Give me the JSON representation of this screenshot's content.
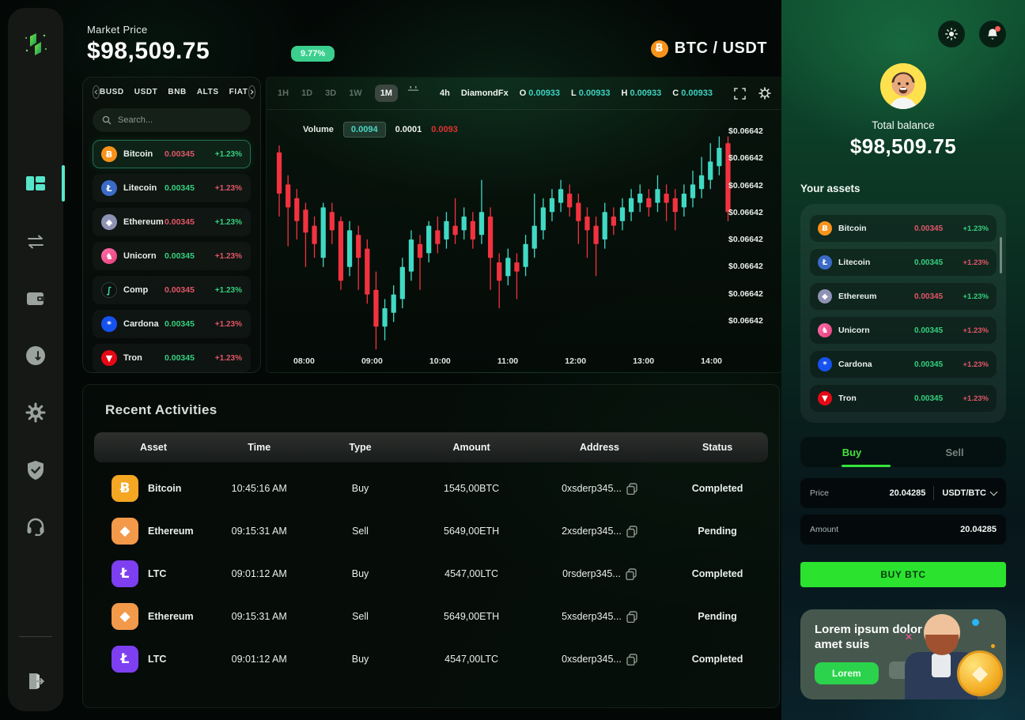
{
  "palette": {
    "green": "#35d07f",
    "red": "#e25668",
    "teal": "#40d9c4",
    "candle_red": "#f2323f",
    "lime": "#2be22e",
    "badge_green": "#3bcf8e",
    "status_green": "#17c796",
    "status_red": "#e03e3e"
  },
  "header": {
    "market_price_label": "Market Price",
    "market_price": "$98,509.75",
    "change_badge": "9.77%",
    "pair": "BTC / USDT",
    "pair_icon": "bitcoin-icon"
  },
  "coin_panel": {
    "filters": [
      "BUSD",
      "USDT",
      "BNB",
      "ALTS",
      "FIAT"
    ],
    "search_placeholder": "Search...",
    "coins": [
      {
        "name": "Bitcoin",
        "price": "0.00345",
        "change": "+1.23%",
        "price_color": "red",
        "change_color": "green",
        "glyph": "Ƀ",
        "bg": "#f7931a",
        "selected": true
      },
      {
        "name": "Litecoin",
        "price": "0.00345",
        "change": "+1.23%",
        "price_color": "green",
        "change_color": "red",
        "glyph": "Ł",
        "bg": "#3b6bc7",
        "selected": false
      },
      {
        "name": "Ethereum",
        "price": "0.00345",
        "change": "+1.23%",
        "price_color": "red",
        "change_color": "green",
        "glyph": "◆",
        "bg": "#8e93b4",
        "selected": false
      },
      {
        "name": "Unicorn",
        "price": "0.00345",
        "change": "+1.23%",
        "price_color": "green",
        "change_color": "red",
        "glyph": "♞",
        "bg": "linear-gradient(135deg,#ff70ae,#e83d77)",
        "selected": false
      },
      {
        "name": "Comp",
        "price": "0.00345",
        "change": "+1.23%",
        "price_color": "red",
        "change_color": "green",
        "glyph": "∫",
        "bg": "#0c1210",
        "fg": "#3be8b0",
        "selected": false
      },
      {
        "name": "Cardona",
        "price": "0.00345",
        "change": "+1.23%",
        "price_color": "green",
        "change_color": "red",
        "glyph": "*",
        "bg": "#1652f0",
        "selected": false
      },
      {
        "name": "Tron",
        "price": "0.00345",
        "change": "+1.23%",
        "price_color": "green",
        "change_color": "red",
        "glyph": "▼",
        "bg": "#e50915",
        "selected": false
      }
    ]
  },
  "chart": {
    "timeframes": [
      "1H",
      "1D",
      "3D",
      "1W",
      "1M"
    ],
    "active_timeframe": "1M",
    "interval": "4h",
    "source": "DiamondFx",
    "ohlc": [
      {
        "key": "O",
        "value": "0.00933"
      },
      {
        "key": "L",
        "value": "0.00933"
      },
      {
        "key": "H",
        "value": "0.00933"
      },
      {
        "key": "C",
        "value": "0.00933"
      }
    ],
    "legend": {
      "volume_label": "Volume",
      "v1": "0.0094",
      "v2": "0.0001",
      "v3": "0.0093"
    }
  },
  "chart_data": {
    "type": "candlestick",
    "title": "BTC / USDT 4h candles",
    "x_labels": [
      "08:00",
      "09:00",
      "10:00",
      "11:00",
      "12:00",
      "13:00",
      "14:00"
    ],
    "y_labels": [
      "$0.06642",
      "$0.06642",
      "$0.06642",
      "$0.06642",
      "$0.06642",
      "$0.06642",
      "$0.06642",
      "$0.06642"
    ],
    "note": "y axis repeats the same placeholder price label; candles approximated as [open,close,high,low] on 0-100 scale",
    "candles": [
      [
        88,
        70,
        91,
        60
      ],
      [
        74,
        64,
        78,
        47
      ],
      [
        68,
        58,
        72,
        50
      ],
      [
        63,
        53,
        66,
        38
      ],
      [
        56,
        48,
        60,
        42
      ],
      [
        42,
        64,
        66,
        38
      ],
      [
        62,
        54,
        66,
        48
      ],
      [
        58,
        32,
        60,
        28
      ],
      [
        38,
        54,
        58,
        34
      ],
      [
        52,
        42,
        56,
        28
      ],
      [
        46,
        26,
        50,
        22
      ],
      [
        28,
        12,
        36,
        2
      ],
      [
        12,
        20,
        24,
        6
      ],
      [
        18,
        26,
        30,
        14
      ],
      [
        24,
        38,
        42,
        20
      ],
      [
        36,
        50,
        54,
        32
      ],
      [
        48,
        42,
        52,
        28
      ],
      [
        44,
        56,
        58,
        40
      ],
      [
        54,
        48,
        60,
        44
      ],
      [
        50,
        58,
        62,
        46
      ],
      [
        56,
        52,
        68,
        48
      ],
      [
        54,
        60,
        64,
        50
      ],
      [
        58,
        50,
        62,
        46
      ],
      [
        52,
        62,
        76,
        48
      ],
      [
        60,
        42,
        64,
        28
      ],
      [
        40,
        32,
        44,
        20
      ],
      [
        34,
        42,
        46,
        30
      ],
      [
        40,
        36,
        44,
        24
      ],
      [
        38,
        48,
        52,
        34
      ],
      [
        46,
        56,
        70,
        42
      ],
      [
        54,
        64,
        68,
        50
      ],
      [
        62,
        68,
        72,
        58
      ],
      [
        66,
        72,
        76,
        62
      ],
      [
        70,
        64,
        74,
        60
      ],
      [
        66,
        58,
        70,
        48
      ],
      [
        60,
        54,
        64,
        42
      ],
      [
        56,
        48,
        60,
        34
      ],
      [
        50,
        62,
        66,
        46
      ],
      [
        60,
        56,
        64,
        52
      ],
      [
        58,
        64,
        68,
        54
      ],
      [
        62,
        68,
        72,
        58
      ],
      [
        66,
        70,
        74,
        62
      ],
      [
        68,
        64,
        72,
        60
      ],
      [
        66,
        72,
        78,
        62
      ],
      [
        70,
        66,
        74,
        58
      ],
      [
        68,
        62,
        72,
        54
      ],
      [
        64,
        70,
        74,
        60
      ],
      [
        68,
        74,
        80,
        64
      ],
      [
        72,
        78,
        86,
        68
      ],
      [
        76,
        84,
        92,
        72
      ],
      [
        82,
        90,
        95,
        78
      ],
      [
        92,
        62,
        95,
        58
      ]
    ]
  },
  "activities": {
    "title": "Recent Activities",
    "columns": [
      "Asset",
      "Time",
      "Type",
      "Amount",
      "Address",
      "Status"
    ],
    "rows": [
      {
        "asset": "Bitcoin",
        "glyph": "Ƀ",
        "bg": "#f5a623",
        "time": "10:45:16 AM",
        "type": "Buy",
        "amount": "1545,00BTC",
        "address": "0xsderp345...",
        "status": "Completed",
        "status_color": "green"
      },
      {
        "asset": "Ethereum",
        "glyph": "◆",
        "bg": "#f2994a",
        "time": "09:15:31 AM",
        "type": "Sell",
        "amount": "5649,00ETH",
        "address": "2xsderp345...",
        "status": "Pending",
        "status_color": "red"
      },
      {
        "asset": "LTC",
        "glyph": "Ł",
        "bg": "#7d3ff0",
        "time": "09:01:12 AM",
        "type": "Buy",
        "amount": "4547,00LTC",
        "address": "0rsderp345...",
        "status": "Completed",
        "status_color": "green"
      },
      {
        "asset": "Ethereum",
        "glyph": "◆",
        "bg": "#f2994a",
        "time": "09:15:31 AM",
        "type": "Sell",
        "amount": "5649,00ETH",
        "address": "5xsderp345...",
        "status": "Pending",
        "status_color": "red"
      },
      {
        "asset": "LTC",
        "glyph": "Ł",
        "bg": "#7d3ff0",
        "time": "09:01:12 AM",
        "type": "Buy",
        "amount": "4547,00LTC",
        "address": "0xsderp345...",
        "status": "Completed",
        "status_color": "green"
      }
    ]
  },
  "right_panel": {
    "total_balance_label": "Total balance",
    "total_balance": "$98,509.75",
    "assets_title": "Your assets",
    "assets": [
      {
        "name": "Bitcoin",
        "price": "0.00345",
        "change": "+1.23%",
        "price_color": "red",
        "change_color": "green",
        "glyph": "Ƀ",
        "bg": "#f7931a"
      },
      {
        "name": "Litecoin",
        "price": "0.00345",
        "change": "+1.23%",
        "price_color": "green",
        "change_color": "red",
        "glyph": "Ł",
        "bg": "#3b6bc7"
      },
      {
        "name": "Ethereum",
        "price": "0.00345",
        "change": "+1.23%",
        "price_color": "red",
        "change_color": "green",
        "glyph": "◆",
        "bg": "#8e93b4"
      },
      {
        "name": "Unicorn",
        "price": "0.00345",
        "change": "+1.23%",
        "price_color": "green",
        "change_color": "red",
        "glyph": "♞",
        "bg": "linear-gradient(135deg,#ff70ae,#e83d77)"
      },
      {
        "name": "Cardona",
        "price": "0.00345",
        "change": "+1.23%",
        "price_color": "green",
        "change_color": "red",
        "glyph": "*",
        "bg": "#1652f0"
      },
      {
        "name": "Tron",
        "price": "0.00345",
        "change": "+1.23%",
        "price_color": "green",
        "change_color": "red",
        "glyph": "▼",
        "bg": "#e50915"
      }
    ],
    "trade": {
      "buy_tab": "Buy",
      "sell_tab": "Sell",
      "price_label": "Price",
      "price_value": "20.04285",
      "pair_select": "USDT/BTC",
      "amount_label": "Amount",
      "amount_value": "20.04285",
      "submit_label": "BUY BTC"
    },
    "promo": {
      "title": "Lorem ipsum dolor amet suis",
      "button_label": "Lorem"
    }
  }
}
